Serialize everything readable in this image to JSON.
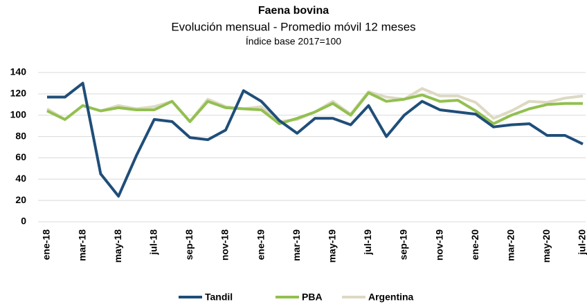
{
  "chart_data": {
    "type": "line",
    "title": "Faena bovina",
    "subtitle": "Evolución mensual - Promedio móvil 12 meses",
    "annotation": "Índice base 2017=100",
    "categories": [
      "ene-18",
      null,
      "mar-18",
      null,
      "may-18",
      null,
      "jul-18",
      null,
      "sep-18",
      null,
      "nov-18",
      null,
      "ene-19",
      null,
      "mar-19",
      null,
      "may-19",
      null,
      "jul-19",
      null,
      "sep-19",
      null,
      "nov-19",
      null,
      "ene-20",
      null,
      "mar-20",
      null,
      "may-20",
      null,
      "jul-20"
    ],
    "series": [
      {
        "name": "Tandil",
        "color": "#1f4e79",
        "values": [
          117,
          117,
          130,
          45,
          24,
          62,
          96,
          94,
          79,
          77,
          86,
          123,
          113,
          95,
          83,
          97,
          97,
          91,
          109,
          80,
          100,
          113,
          105,
          103,
          101,
          89,
          91,
          92,
          81,
          81,
          73
        ]
      },
      {
        "name": "PBA",
        "color": "#92c050",
        "values": [
          104,
          96,
          109,
          104,
          107,
          105,
          105,
          113,
          94,
          113,
          107,
          106,
          105,
          92,
          97,
          103,
          111,
          100,
          121,
          113,
          115,
          119,
          113,
          114,
          104,
          92,
          100,
          106,
          110,
          111,
          111
        ]
      },
      {
        "name": "Argentina",
        "color": "#ddd9c3",
        "values": [
          106,
          96,
          109,
          104,
          109,
          106,
          108,
          113,
          94,
          115,
          108,
          106,
          108,
          94,
          96,
          103,
          113,
          101,
          122,
          117,
          115,
          125,
          118,
          118,
          112,
          97,
          104,
          113,
          112,
          116,
          118
        ]
      }
    ],
    "ylim": [
      0,
      140
    ],
    "yticks": [
      0,
      20,
      40,
      60,
      80,
      100,
      120,
      140
    ],
    "grid": true,
    "legend": "bottom"
  }
}
